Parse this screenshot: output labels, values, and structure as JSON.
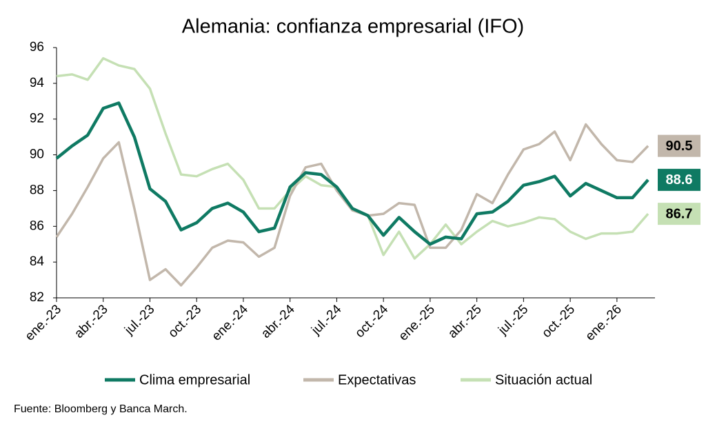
{
  "chart_data": {
    "type": "line",
    "title": "Alemania: confianza empresarial (IFO)",
    "categories": [
      "ene.-23",
      null,
      null,
      "abr.-23",
      null,
      null,
      "jul.-23",
      null,
      null,
      "oct.-23",
      null,
      null,
      "ene.-24",
      null,
      null,
      "abr.-24",
      null,
      null,
      "jul.-24",
      null,
      null,
      "oct.-24",
      null,
      null,
      "ene.-25",
      null,
      null,
      "abr.-25",
      null,
      null,
      "jul.-25",
      null,
      null,
      "oct.-25",
      null,
      null,
      "ene.-26",
      null,
      null
    ],
    "series": [
      {
        "name": "Clima empresarial",
        "color": "#0f7a63",
        "label_text": "#ffffff",
        "values": [
          89.8,
          90.5,
          91.1,
          92.6,
          92.9,
          91.0,
          88.1,
          87.4,
          85.8,
          86.2,
          87.0,
          87.3,
          86.8,
          85.7,
          85.9,
          88.2,
          89.0,
          88.9,
          88.2,
          87.0,
          86.6,
          85.5,
          86.5,
          85.7,
          85.0,
          85.4,
          85.3,
          86.7,
          86.8,
          87.4,
          88.3,
          88.5,
          88.8,
          87.7,
          88.4,
          88.0,
          87.6,
          87.6,
          88.6
        ]
      },
      {
        "name": "Expectativas",
        "color": "#c2b7ab",
        "label_text": "#000000",
        "values": [
          85.4,
          86.7,
          88.2,
          89.8,
          90.7,
          87.0,
          83.0,
          83.6,
          82.7,
          83.7,
          84.8,
          85.2,
          85.1,
          84.3,
          84.8,
          87.7,
          89.3,
          89.5,
          88.0,
          86.9,
          86.6,
          86.7,
          87.3,
          87.2,
          84.8,
          84.8,
          85.8,
          87.8,
          87.3,
          88.9,
          90.3,
          90.6,
          91.3,
          89.7,
          91.7,
          90.6,
          89.7,
          89.6,
          90.5
        ]
      },
      {
        "name": "Situación actual",
        "color": "#c5e0b4",
        "label_text": "#000000",
        "values": [
          94.4,
          94.5,
          94.2,
          95.4,
          95.0,
          94.8,
          93.7,
          91.2,
          88.9,
          88.8,
          89.2,
          89.5,
          88.6,
          87.0,
          87.0,
          88.0,
          88.8,
          88.3,
          88.2,
          86.9,
          86.6,
          84.4,
          85.7,
          84.2,
          85.0,
          86.1,
          85.0,
          85.7,
          86.3,
          86.0,
          86.2,
          86.5,
          86.4,
          85.7,
          85.3,
          85.6,
          85.6,
          85.7,
          86.7
        ]
      }
    ],
    "ylim": [
      82,
      96
    ],
    "yticks": [
      82,
      84,
      86,
      88,
      90,
      92,
      94,
      96
    ],
    "source": "Fuente: Bloomberg y Banca March."
  }
}
